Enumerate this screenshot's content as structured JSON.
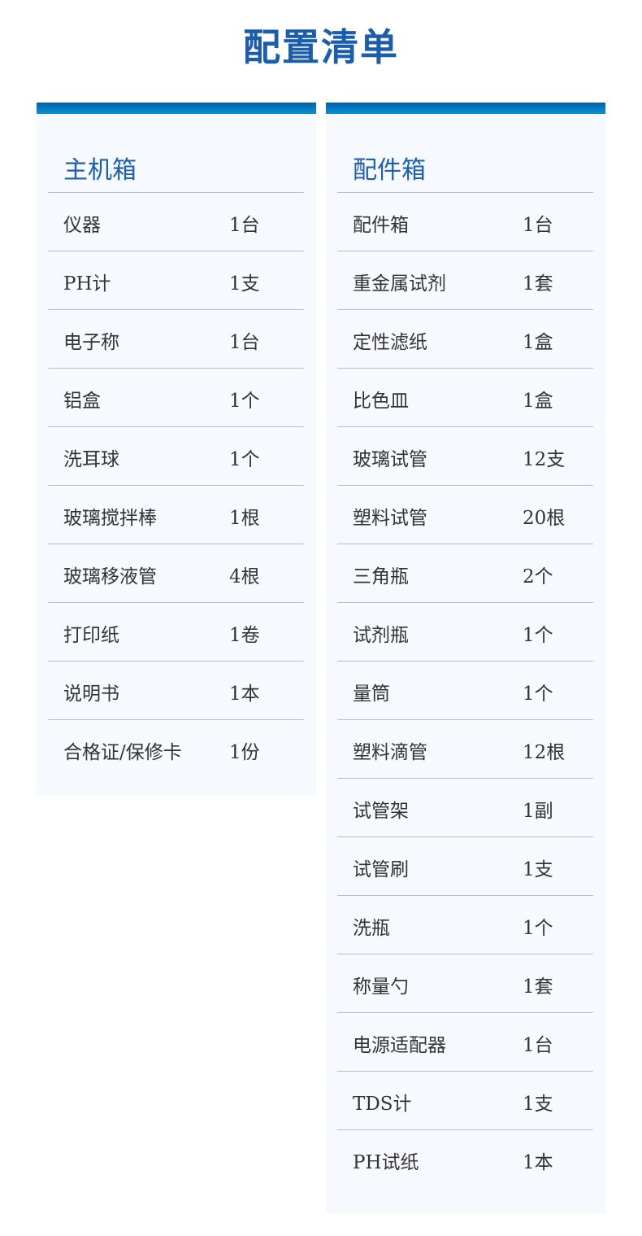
{
  "title": "配置清单",
  "main_box": {
    "heading": "主机箱",
    "items": [
      {
        "name": "仪器",
        "qty": "1台"
      },
      {
        "name": "PH计",
        "qty": "1支"
      },
      {
        "name": "电子称",
        "qty": "1台"
      },
      {
        "name": "铝盒",
        "qty": "1个"
      },
      {
        "name": "洗耳球",
        "qty": "1个"
      },
      {
        "name": "玻璃搅拌棒",
        "qty": "1根"
      },
      {
        "name": "玻璃移液管",
        "qty": "4根"
      },
      {
        "name": "打印纸",
        "qty": "1卷"
      },
      {
        "name": "说明书",
        "qty": "1本"
      },
      {
        "name": "合格证/保修卡",
        "qty": "1份"
      }
    ]
  },
  "accessory_box": {
    "heading": "配件箱",
    "items": [
      {
        "name": "配件箱",
        "qty": "1台"
      },
      {
        "name": "重金属试剂",
        "qty": "1套"
      },
      {
        "name": "定性滤纸",
        "qty": "1盒"
      },
      {
        "name": "比色皿",
        "qty": "1盒"
      },
      {
        "name": "玻璃试管",
        "qty": "12支"
      },
      {
        "name": "塑料试管",
        "qty": "20根"
      },
      {
        "name": "三角瓶",
        "qty": "2个"
      },
      {
        "name": "试剂瓶",
        "qty": "1个"
      },
      {
        "name": "量筒",
        "qty": "1个"
      },
      {
        "name": "塑料滴管",
        "qty": "12根"
      },
      {
        "name": "试管架",
        "qty": "1副"
      },
      {
        "name": "试管刷",
        "qty": "1支"
      },
      {
        "name": "洗瓶",
        "qty": "1个"
      },
      {
        "name": "称量勺",
        "qty": "1套"
      },
      {
        "name": "电源适配器",
        "qty": "1台"
      },
      {
        "name": "TDS计",
        "qty": "1支"
      },
      {
        "name": "PH试纸",
        "qty": "1本"
      }
    ]
  }
}
